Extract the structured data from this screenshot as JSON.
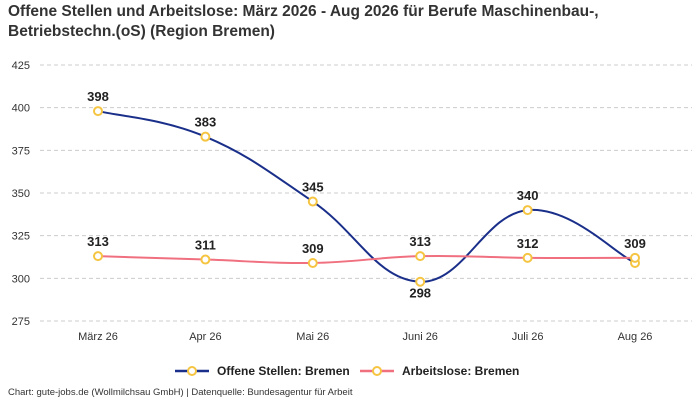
{
  "chart_data": {
    "type": "line",
    "title": "Offene Stellen und Arbeitslose: März 2026 - Aug 2026 für Berufe Maschinenbau-, Betriebstechn.(oS) (Region Bremen)",
    "categories": [
      "März 26",
      "Apr 26",
      "Mai 26",
      "Juni 26",
      "Juli 26",
      "Aug 26"
    ],
    "series": [
      {
        "name": "Offene Stellen: Bremen",
        "color": "#1a2f8a",
        "values": [
          398,
          383,
          345,
          298,
          340,
          309
        ]
      },
      {
        "name": "Arbeitslose: Bremen",
        "color": "#f07080",
        "values": [
          313,
          311,
          309,
          313,
          312,
          312
        ]
      }
    ],
    "yticks": [
      275,
      300,
      325,
      350,
      375,
      400,
      425
    ],
    "ylim": [
      275,
      425
    ],
    "grid": true,
    "legend_position": "bottom",
    "marker_color": "#f5c542"
  },
  "source": "Chart: gute-jobs.de (Wollmilchsau GmbH) | Datenquelle: Bundesagentur für Arbeit"
}
